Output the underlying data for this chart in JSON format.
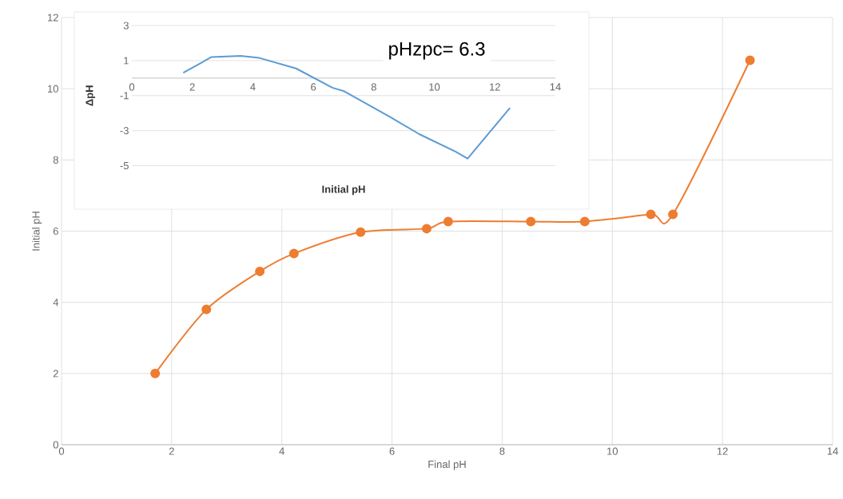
{
  "chart_data": [
    {
      "type": "line",
      "xlabel": "Final pH",
      "ylabel": "Initial pH",
      "xlim": [
        0,
        14
      ],
      "ylim": [
        0,
        12
      ],
      "xticks": [
        0,
        2,
        4,
        6,
        8,
        10,
        12,
        14
      ],
      "yticks": [
        0,
        2,
        4,
        6,
        8,
        10,
        12
      ],
      "grid": true,
      "marker": "circle",
      "series": [
        {
          "color": "#ed7d31",
          "x": [
            1.7,
            2.63,
            3.6,
            4.22,
            5.43,
            6.63,
            7.02,
            8.52,
            9.5,
            10.7,
            11.1,
            12.5
          ],
          "values": [
            2.0,
            3.8,
            4.87,
            5.37,
            5.97,
            6.07,
            6.27,
            6.27,
            6.27,
            6.47,
            6.47,
            10.8
          ]
        }
      ]
    },
    {
      "type": "line",
      "xlabel": "Initial pH",
      "ylabel": "ΔpH",
      "xlim": [
        0,
        14
      ],
      "ylim": [
        -5,
        3
      ],
      "xticks": [
        0,
        2,
        4,
        6,
        8,
        10,
        12,
        14
      ],
      "yticks": [
        -5,
        -3,
        -1,
        1,
        3
      ],
      "grid": "y",
      "marker": "none",
      "annotations": [
        "pHzpc= 6.3"
      ],
      "series": [
        {
          "color": "#5b9bd5",
          "x": [
            1.7,
            2.63,
            3.6,
            4.22,
            5.43,
            6.63,
            7.02,
            8.52,
            9.5,
            10.7,
            11.1,
            12.5
          ],
          "values": [
            0.3,
            1.2,
            1.27,
            1.15,
            0.55,
            -0.55,
            -0.75,
            -2.2,
            -3.2,
            -4.2,
            -4.6,
            -1.7
          ]
        }
      ]
    }
  ]
}
